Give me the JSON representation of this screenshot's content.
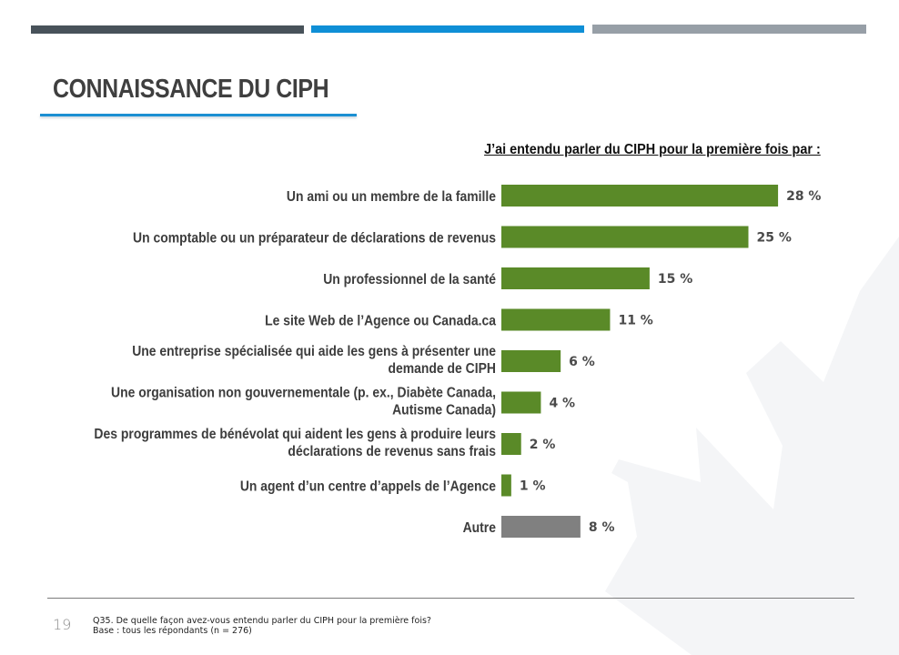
{
  "header": {
    "accent_colors": [
      "#48525a",
      "#0f8fd6",
      "#979fa7"
    ],
    "title": "CONNAISSANCE DU CIPH"
  },
  "chart_data": {
    "type": "bar",
    "orientation": "horizontal",
    "title": "J’ai entendu parler du CIPH pour la première fois par :",
    "xlabel": "",
    "ylabel": "",
    "xlim": [
      0,
      30
    ],
    "grid": false,
    "legend": "none",
    "value_suffix": " %",
    "categories": [
      "Un ami ou un membre de la famille",
      "Un comptable ou un préparateur de déclarations de revenus",
      "Un professionnel de la santé",
      "Le site Web de l’Agence ou Canada.ca",
      "Une entreprise spécialisée qui aide les gens à présenter une demande de CIPH",
      "Une organisation non gouvernementale (p. ex., Diabète Canada, Autisme Canada)",
      "Des programmes de bénévolat qui aident les gens à produire leurs déclarations de revenus sans frais",
      "Un agent d’un centre d’appels de l’Agence",
      "Autre"
    ],
    "label_lines": [
      [
        "Un ami ou un membre de la famille"
      ],
      [
        "Un comptable ou un préparateur de déclarations de revenus"
      ],
      [
        "Un professionnel de la santé"
      ],
      [
        "Le site Web de l’Agence ou Canada.ca"
      ],
      [
        "Une entreprise spécialisée qui aide les gens à présenter une",
        "demande de CIPH"
      ],
      [
        "Une organisation non gouvernementale (p. ex., Diabète Canada,",
        "Autisme Canada)"
      ],
      [
        "Des programmes de bénévolat qui aident les gens à produire leurs",
        "déclarations de revenus sans frais"
      ],
      [
        "Un agent d’un centre d’appels de l’Agence"
      ],
      [
        "Autre"
      ]
    ],
    "values": [
      28,
      25,
      15,
      11,
      6,
      4,
      2,
      1,
      8
    ],
    "colors": [
      "#5a8a28",
      "#5a8a28",
      "#5a8a28",
      "#5a8a28",
      "#5a8a28",
      "#5a8a28",
      "#5a8a28",
      "#5a8a28",
      "#808080"
    ]
  },
  "footer": {
    "page_number": "19",
    "question": "Q35. De quelle façon avez-vous entendu parler du CIPH pour la première fois?",
    "base": "Base : tous les répondants (n = 276)"
  }
}
